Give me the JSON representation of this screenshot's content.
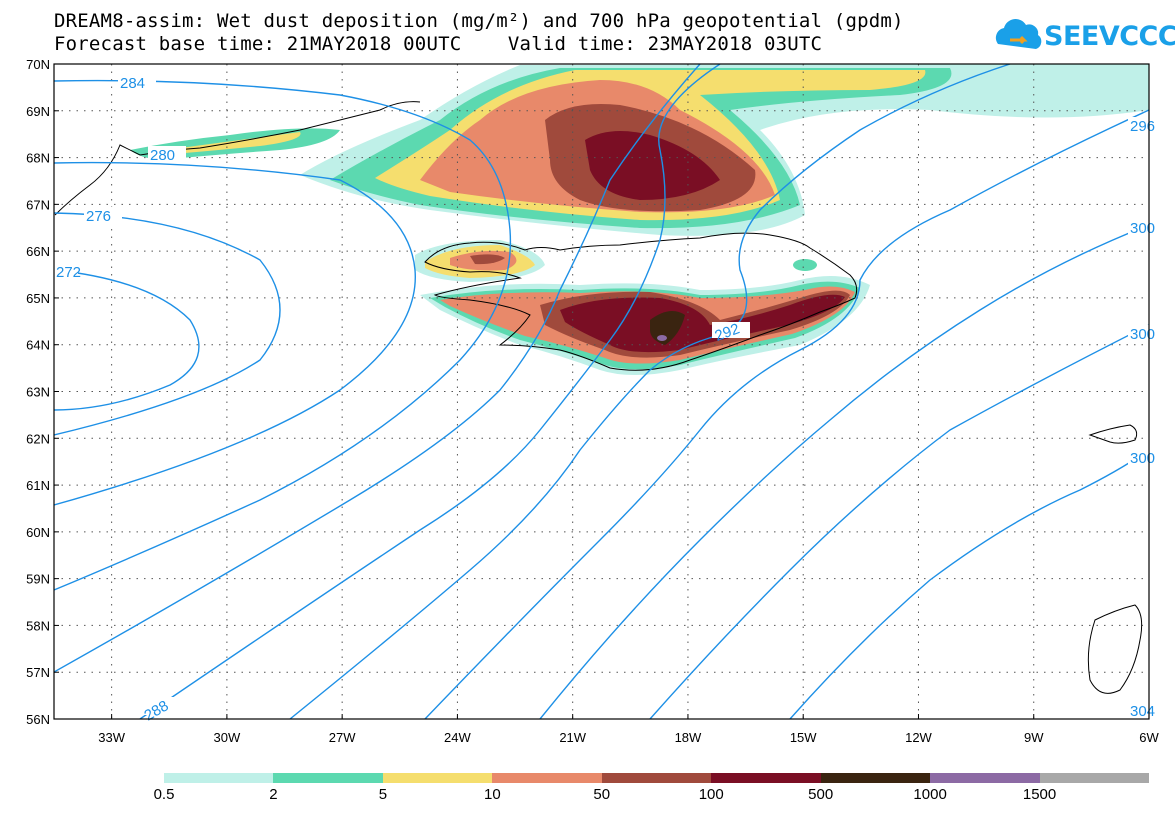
{
  "title": {
    "line1": "DREAM8-assim: Wet dust deposition (mg/m²) and 700 hPa geopotential (gpdm)",
    "line2": "Forecast base time: 21MAY2018 00UTC    Valid time: 23MAY2018 03UTC"
  },
  "logo": {
    "text": "SEEVCCC",
    "icon": "cloud-icon"
  },
  "map": {
    "region": {
      "lon": [
        -34.5,
        -6
      ],
      "lat": [
        56,
        70
      ]
    },
    "grid": true,
    "lat_labels": [
      "70N",
      "69N",
      "68N",
      "67N",
      "66N",
      "65N",
      "64N",
      "63N",
      "62N",
      "61N",
      "60N",
      "59N",
      "58N",
      "57N",
      "56N"
    ],
    "lon_labels": [
      "33W",
      "30W",
      "27W",
      "24W",
      "21W",
      "18W",
      "15W",
      "12W",
      "9W",
      "6W"
    ],
    "contour_labels": [
      "284",
      "280",
      "276",
      "272",
      "288",
      "292",
      "296",
      "300",
      "300",
      "300",
      "304"
    ]
  },
  "colorbar": {
    "labels": [
      "0.5",
      "2",
      "5",
      "10",
      "50",
      "100",
      "500",
      "1000",
      "1500"
    ],
    "colors": [
      "#bff0e8",
      "#5cd9b0",
      "#f5de6e",
      "#e8896a",
      "#a04a3c",
      "#7a0e24",
      "#3a2410",
      "#8c6aa4",
      "#a8a8a8"
    ]
  },
  "colors": {
    "contour": "#1e90e6",
    "coast": "#000000"
  }
}
